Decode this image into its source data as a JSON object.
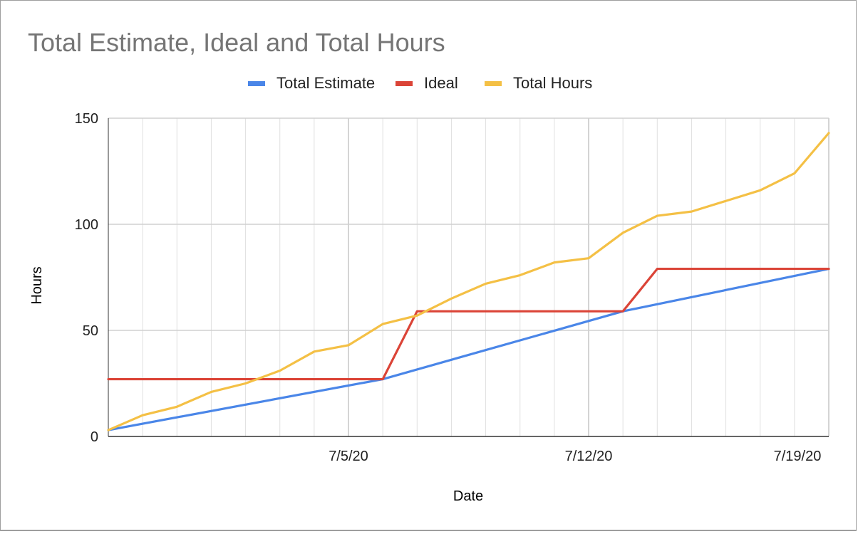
{
  "chart_data": {
    "type": "line",
    "title": "Total Estimate, Ideal and Total Hours",
    "xlabel": "Date",
    "ylabel": "Hours",
    "x": [
      "6/28/20",
      "6/29/20",
      "6/30/20",
      "7/1/20",
      "7/2/20",
      "7/3/20",
      "7/4/20",
      "7/5/20",
      "7/6/20",
      "7/7/20",
      "7/8/20",
      "7/9/20",
      "7/10/20",
      "7/11/20",
      "7/12/20",
      "7/13/20",
      "7/14/20",
      "7/15/20",
      "7/16/20",
      "7/17/20",
      "7/18/20",
      "7/19/20"
    ],
    "x_ticks": [
      "7/5/20",
      "7/12/20",
      "7/19/20"
    ],
    "ylim": [
      0,
      150
    ],
    "y_ticks": [
      0,
      50,
      100,
      150
    ],
    "grid": true,
    "legend_position": "top",
    "series": [
      {
        "name": "Total Estimate",
        "color": "#4a86e8",
        "points": [
          [
            "6/28/20",
            3
          ],
          [
            "7/6/20",
            27
          ],
          [
            "7/13/20",
            59
          ],
          [
            "7/19/20",
            79
          ]
        ]
      },
      {
        "name": "Ideal",
        "color": "#db4437",
        "points": [
          [
            "6/28/20",
            27
          ],
          [
            "7/6/20",
            27
          ],
          [
            "7/7/20",
            59
          ],
          [
            "7/13/20",
            59
          ],
          [
            "7/14/20",
            79
          ],
          [
            "7/19/20",
            79
          ]
        ]
      },
      {
        "name": "Total Hours",
        "color": "#f4c045",
        "points": [
          [
            "6/28/20",
            3
          ],
          [
            "6/29/20",
            10
          ],
          [
            "6/30/20",
            14
          ],
          [
            "7/1/20",
            21
          ],
          [
            "7/2/20",
            25
          ],
          [
            "7/3/20",
            31
          ],
          [
            "7/4/20",
            40
          ],
          [
            "7/5/20",
            43
          ],
          [
            "7/6/20",
            53
          ],
          [
            "7/7/20",
            57
          ],
          [
            "7/8/20",
            65
          ],
          [
            "7/9/20",
            72
          ],
          [
            "7/10/20",
            76
          ],
          [
            "7/11/20",
            82
          ],
          [
            "7/12/20",
            84
          ],
          [
            "7/13/20",
            96
          ],
          [
            "7/14/20",
            104
          ],
          [
            "7/15/20",
            106
          ],
          [
            "7/16/20",
            111
          ],
          [
            "7/17/20",
            116
          ],
          [
            "7/18/20",
            124
          ],
          [
            "7/19/20",
            143
          ]
        ]
      }
    ]
  }
}
